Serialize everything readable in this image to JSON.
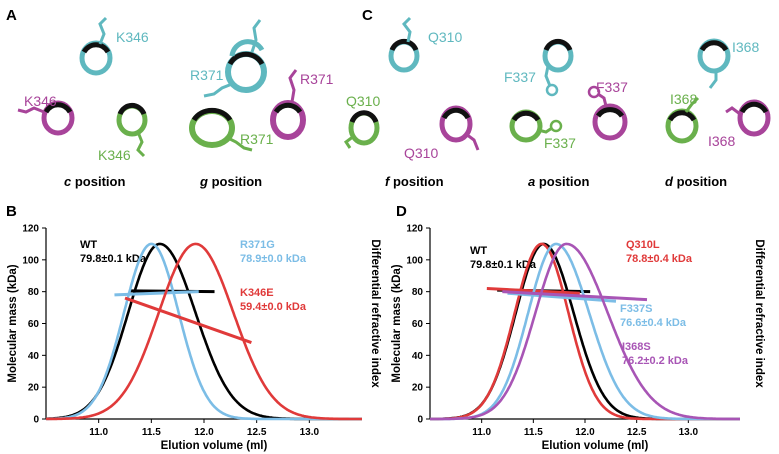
{
  "colors": {
    "teal": "#5fb8bf",
    "magenta": "#a8449a",
    "green": "#6ab04c",
    "black": "#111111",
    "wt": "#000000",
    "blue": "#7cbde6",
    "red": "#e03a3a",
    "purple": "#a855b5"
  },
  "panels": {
    "A": {
      "letter": "A",
      "groups": [
        {
          "position_letter": "c",
          "position_word": "position",
          "residues": [
            "K346",
            "K346",
            "K346"
          ]
        },
        {
          "position_letter": "g",
          "position_word": "position",
          "residues": [
            "R371",
            "R371",
            "R371"
          ]
        }
      ]
    },
    "C": {
      "letter": "C",
      "groups": [
        {
          "position_letter": "f",
          "position_word": "position",
          "residues": [
            "Q310",
            "Q310",
            "Q310"
          ]
        },
        {
          "position_letter": "a",
          "position_word": "position",
          "residues": [
            "F337",
            "F337",
            "F337"
          ]
        },
        {
          "position_letter": "d",
          "position_word": "position",
          "residues": [
            "I368",
            "I368",
            "I368"
          ]
        }
      ]
    }
  },
  "chart_data": [
    {
      "panel": "B",
      "type": "line",
      "xlabel": "Elution volume (ml)",
      "ylabel": "Molecular mass (kDa)",
      "y2label": "Differential refractive index",
      "xlim": [
        10.5,
        13.5
      ],
      "ylim": [
        0,
        120
      ],
      "xticks": [
        "11.0",
        "11.5",
        "12.0",
        "12.5",
        "13.0"
      ],
      "yticks": [
        "0",
        "20",
        "40",
        "60",
        "80",
        "100",
        "120"
      ],
      "series": [
        {
          "name": "WT",
          "mass": "79.8±0.1 kDa",
          "color": "#000000",
          "peak_x": 11.58,
          "sigma_left": 0.3,
          "sigma_right": 0.34,
          "peak_y": 110,
          "mass_x": [
            11.3,
            12.1
          ],
          "mass_y": [
            80.5,
            80.0
          ]
        },
        {
          "name": "R371G",
          "mass": "78.9±0.0 kDa",
          "color": "#7cbde6",
          "peak_x": 11.5,
          "sigma_left": 0.26,
          "sigma_right": 0.26,
          "peak_y": 110,
          "mass_x": [
            11.15,
            11.95
          ],
          "mass_y": [
            78,
            80
          ]
        },
        {
          "name": "K346E",
          "mass": "59.4±0.0 kDa",
          "color": "#e03a3a",
          "peak_x": 11.92,
          "sigma_left": 0.35,
          "sigma_right": 0.36,
          "peak_y": 110,
          "mass_x": [
            11.25,
            12.45
          ],
          "mass_y": [
            76,
            48
          ]
        }
      ]
    },
    {
      "panel": "D",
      "type": "line",
      "xlabel": "Elution volume (ml)",
      "ylabel": "Molecular mass (kDa)",
      "y2label": "Differential refractive index",
      "xlim": [
        10.5,
        13.5
      ],
      "ylim": [
        0,
        120
      ],
      "xticks": [
        "11.0",
        "11.5",
        "12.0",
        "12.5",
        "13.0"
      ],
      "yticks": [
        "0",
        "20",
        "40",
        "60",
        "80",
        "100",
        "120"
      ],
      "series": [
        {
          "name": "WT",
          "mass": "79.8±0.1 kDa",
          "color": "#000000",
          "peak_x": 11.6,
          "sigma_left": 0.27,
          "sigma_right": 0.29,
          "peak_y": 110,
          "mass_x": [
            11.15,
            12.05
          ],
          "mass_y": [
            81,
            80
          ]
        },
        {
          "name": "Q310L",
          "mass": "78.8±0.4 kDa",
          "color": "#e03a3a",
          "peak_x": 11.58,
          "sigma_left": 0.26,
          "sigma_right": 0.26,
          "peak_y": 110,
          "mass_x": [
            11.05,
            11.95
          ],
          "mass_y": [
            82,
            79
          ]
        },
        {
          "name": "F337S",
          "mass": "76.6±0.4 kDa",
          "color": "#7cbde6",
          "peak_x": 11.72,
          "sigma_left": 0.27,
          "sigma_right": 0.32,
          "peak_y": 110,
          "mass_x": [
            11.25,
            12.3
          ],
          "mass_y": [
            79,
            74
          ]
        },
        {
          "name": "I368S",
          "mass": "76.2±0.2 kDa",
          "color": "#a855b5",
          "peak_x": 11.82,
          "sigma_left": 0.3,
          "sigma_right": 0.4,
          "peak_y": 110,
          "mass_x": [
            11.2,
            12.6
          ],
          "mass_y": [
            80,
            75
          ]
        }
      ]
    }
  ]
}
